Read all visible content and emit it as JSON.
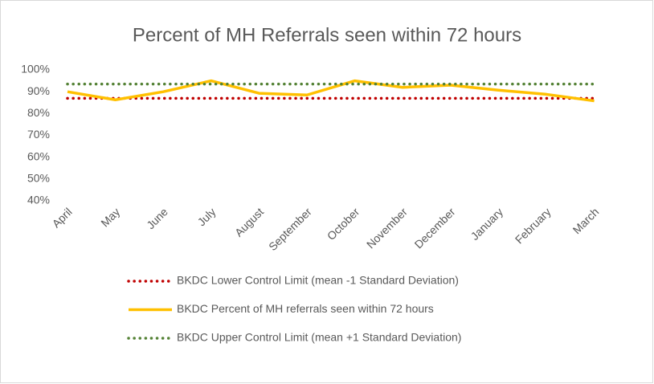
{
  "chart_data": {
    "type": "line",
    "title": "Percent of MH Referrals seen within 72 hours",
    "categories": [
      "April",
      "May",
      "June",
      "July",
      "August",
      "September",
      "October",
      "November",
      "December",
      "January",
      "February",
      "March"
    ],
    "series": [
      {
        "name": "BKDC Lower Control Limit (mean -1 Standard Deviation)",
        "color": "#c00000",
        "style": "dotted",
        "values": [
          87,
          87,
          87,
          87,
          87,
          87,
          87,
          87,
          87,
          87,
          87,
          87
        ]
      },
      {
        "name": "BKDC Percent of MH referrals seen within 72 hours",
        "color": "#ffc000",
        "style": "solid",
        "values": [
          90,
          86.3,
          90,
          95,
          89.3,
          88.5,
          95,
          92,
          93,
          90.7,
          88.8,
          85.8
        ]
      },
      {
        "name": "BKDC Upper Control Limit (mean +1 Standard Deviation)",
        "color": "#548235",
        "style": "dotted",
        "values": [
          93.5,
          93.5,
          93.5,
          93.5,
          93.5,
          93.5,
          93.5,
          93.5,
          93.5,
          93.5,
          93.5,
          93.5
        ]
      }
    ],
    "ylim": [
      40,
      100
    ],
    "yticks": [
      {
        "value": 40,
        "label": "40%"
      },
      {
        "value": 50,
        "label": "50%"
      },
      {
        "value": 60,
        "label": "60%"
      },
      {
        "value": 70,
        "label": "70%"
      },
      {
        "value": 80,
        "label": "80%"
      },
      {
        "value": 90,
        "label": "90%"
      },
      {
        "value": 100,
        "label": "100%"
      }
    ],
    "grid": false,
    "legend": "bottom"
  }
}
